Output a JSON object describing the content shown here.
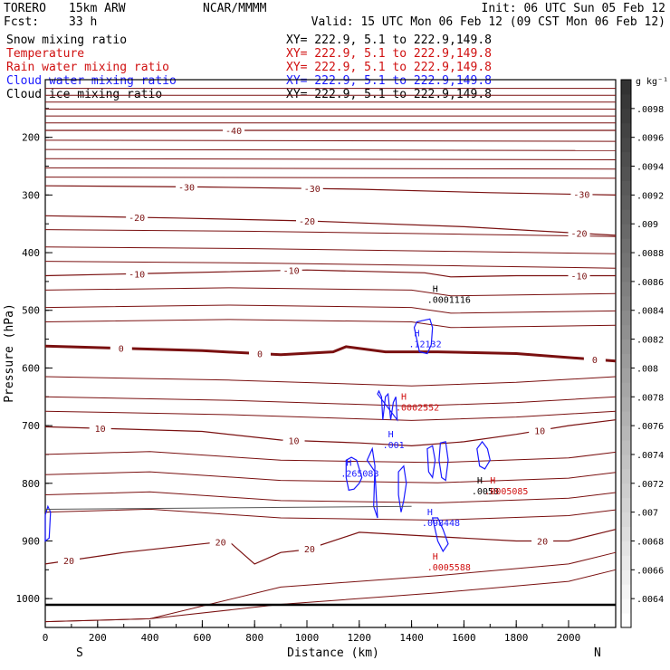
{
  "header": {
    "model": "TORERO",
    "resolution": "15km ARW",
    "org": "NCAR/MMMM",
    "init": "Init: 06 UTC Sun 05 Feb 12",
    "fcst_label": "Fcst:",
    "fcst_value": "33 h",
    "valid": "Valid: 15 UTC Mon 06 Feb 12 (09 CST Mon 06 Feb 12)"
  },
  "fields": [
    {
      "name": "Snow mixing ratio",
      "xy": "XY= 222.9,   5.1 to 222.9,149.8",
      "color": "#000000"
    },
    {
      "name": "Temperature",
      "xy": "XY= 222.9,   5.1 to 222.9,149.8",
      "color": "#d01010"
    },
    {
      "name": "Rain water mixing ratio",
      "xy": "XY= 222.9,   5.1 to 222.9,149.8",
      "color": "#d01010"
    },
    {
      "name": "Cloud water mixing ratio",
      "xy": "XY= 222.9,   5.1 to 222.9,149.8",
      "color": "#1a1aff"
    },
    {
      "name": "Cloud ice mixing ratio",
      "xy": "XY= 222.9,   5.1 to 222.9,149.8",
      "color": "#000000"
    }
  ],
  "chart_data": {
    "type": "contour-cross-section",
    "xlabel": "Distance (km)",
    "ylabel": "Pressure (hPa)",
    "xlim": [
      0,
      2180
    ],
    "ylim": [
      1050,
      100
    ],
    "x_ticks": [
      0,
      200,
      400,
      600,
      800,
      1000,
      1200,
      1400,
      1600,
      1800,
      2000
    ],
    "y_ticks": [
      200,
      300,
      400,
      500,
      600,
      700,
      800,
      900,
      1000
    ],
    "x_end_labels": {
      "left": "S",
      "right": "N"
    },
    "colorbar": {
      "unit": "g kg⁻¹",
      "ticks": [
        ".0064",
        ".0066",
        ".0068",
        ".007",
        ".0072",
        ".0074",
        ".0076",
        ".0078",
        ".008",
        ".0082",
        ".0084",
        ".0086",
        ".0088",
        ".009",
        ".0092",
        ".0094",
        ".0096",
        ".0098"
      ],
      "range": [
        0.0062,
        0.01
      ]
    },
    "isotherms": [
      {
        "label": "-40",
        "points": [
          [
            0,
            188
          ],
          [
            1000,
            188
          ],
          [
            2180,
            188
          ]
        ],
        "label_pos": [
          [
            720,
            -40
          ]
        ]
      },
      {
        "label": "-30",
        "points": [
          [
            0,
            284
          ],
          [
            600,
            286
          ],
          [
            1200,
            290
          ],
          [
            1700,
            296
          ],
          [
            2180,
            300
          ]
        ],
        "label_pos": [
          [
            540,
            -30
          ],
          [
            1020,
            -30
          ],
          [
            2050,
            -30
          ]
        ]
      },
      {
        "label": "-20",
        "points": [
          [
            0,
            336
          ],
          [
            500,
            340
          ],
          [
            1000,
            345
          ],
          [
            1600,
            355
          ],
          [
            2180,
            370
          ]
        ],
        "label_pos": [
          [
            350,
            -20
          ],
          [
            1000,
            -20
          ],
          [
            2040,
            -20
          ]
        ]
      },
      {
        "label": "-10",
        "points": [
          [
            0,
            440
          ],
          [
            400,
            436
          ],
          [
            1000,
            430
          ],
          [
            1450,
            435
          ],
          [
            1550,
            442
          ],
          [
            1800,
            440
          ],
          [
            2180,
            440
          ]
        ],
        "label_pos": [
          [
            350,
            -10
          ],
          [
            940,
            -10
          ],
          [
            2040,
            -10
          ]
        ]
      },
      {
        "label": "0",
        "points": [
          [
            0,
            562
          ],
          [
            300,
            566
          ],
          [
            600,
            570
          ],
          [
            900,
            577
          ],
          [
            1100,
            572
          ],
          [
            1150,
            563
          ],
          [
            1300,
            572
          ],
          [
            1500,
            572
          ],
          [
            1800,
            575
          ],
          [
            2180,
            588
          ]
        ],
        "label_pos": [
          [
            290,
            0
          ],
          [
            820,
            0
          ],
          [
            2100,
            0
          ]
        ]
      },
      {
        "label": "10",
        "points": [
          [
            0,
            702
          ],
          [
            300,
            706
          ],
          [
            600,
            710
          ],
          [
            900,
            725
          ],
          [
            1200,
            730
          ],
          [
            1400,
            735
          ],
          [
            1600,
            728
          ],
          [
            1800,
            715
          ],
          [
            2000,
            700
          ],
          [
            2180,
            690
          ]
        ],
        "label_pos": [
          [
            210,
            10
          ],
          [
            950,
            10
          ],
          [
            1890,
            10
          ]
        ]
      },
      {
        "label": "20",
        "points": [
          [
            0,
            940
          ],
          [
            300,
            920
          ],
          [
            600,
            905
          ],
          [
            700,
            900
          ],
          [
            800,
            940
          ],
          [
            900,
            920
          ],
          [
            1000,
            915
          ],
          [
            1200,
            885
          ],
          [
            1400,
            890
          ],
          [
            1600,
            895
          ],
          [
            1800,
            900
          ],
          [
            2000,
            900
          ],
          [
            2180,
            880
          ]
        ],
        "label_pos": [
          [
            90,
            20
          ],
          [
            670,
            20
          ],
          [
            1010,
            20
          ],
          [
            1900,
            20
          ]
        ]
      }
    ],
    "maxima": [
      {
        "field": "Cloud ice mixing ratio",
        "value": ".0001116",
        "x": 1480,
        "p": 468
      },
      {
        "field": "Cloud water mixing ratio",
        "value": ".12132",
        "x": 1410,
        "p": 545
      },
      {
        "field": "Rain water mixing ratio",
        "value": ".0002552",
        "x": 1360,
        "p": 655
      },
      {
        "field": "Cloud water mixing ratio",
        "value": ".001",
        "x": 1310,
        "p": 720
      },
      {
        "field": "Cloud water mixing ratio",
        "value": ".265083",
        "x": 1150,
        "p": 770
      },
      {
        "field": "Snow mixing ratio",
        "value": ".0058",
        "x": 1650,
        "p": 800
      },
      {
        "field": "Rain water mixing ratio",
        "value": ".0005085",
        "x": 1700,
        "p": 800
      },
      {
        "field": "Cloud water mixing ratio",
        "value": ".098448",
        "x": 1460,
        "p": 855
      },
      {
        "field": "Rain water mixing ratio",
        "value": ".0005588",
        "x": 1480,
        "p": 932
      }
    ]
  }
}
